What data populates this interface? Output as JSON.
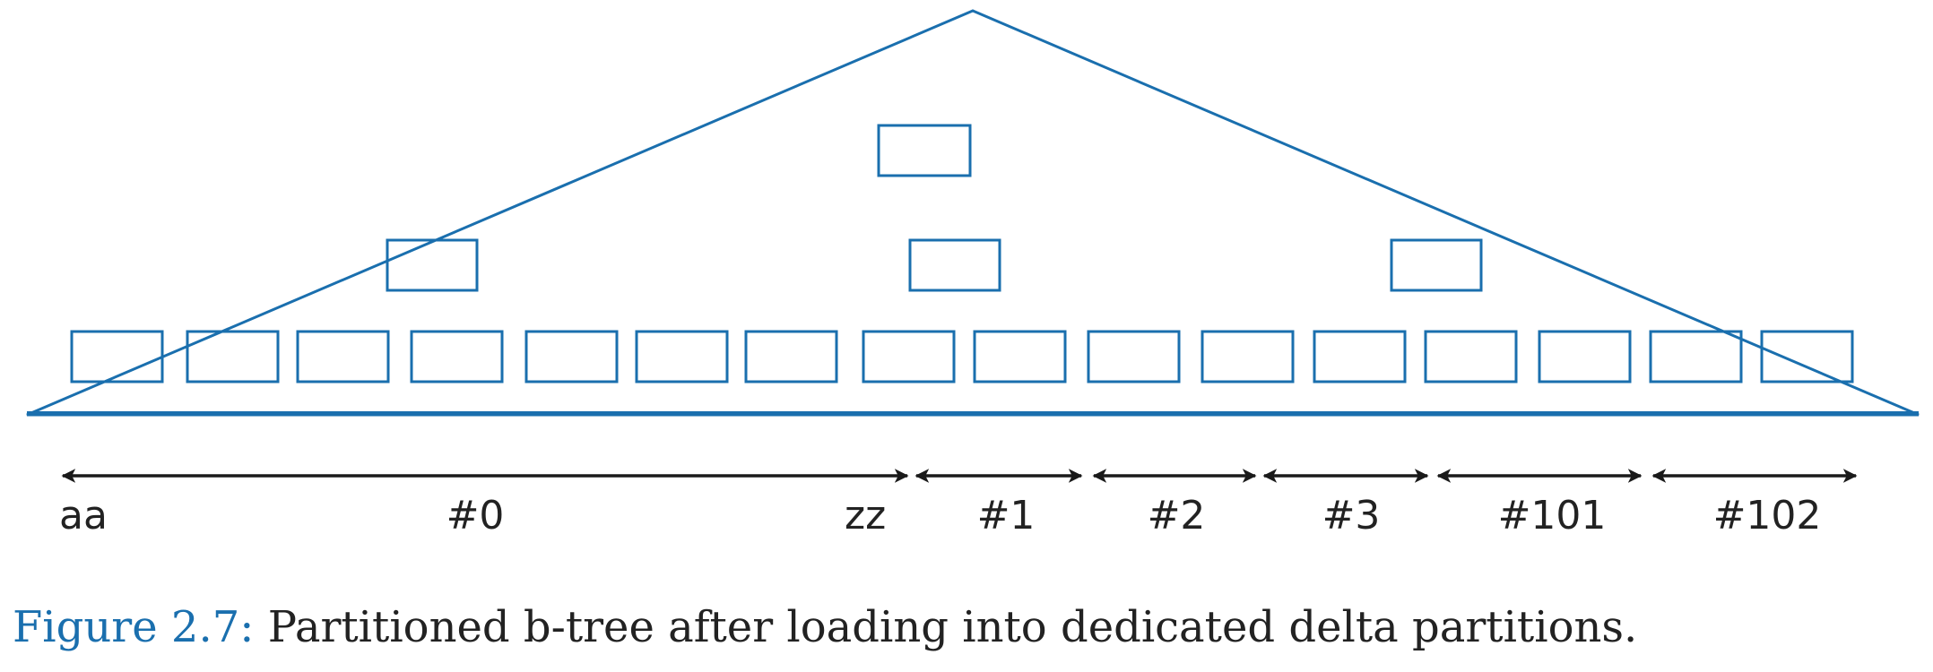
{
  "diagram": {
    "tree_color": "#1a6fae",
    "arrow_color": "#1a1a1a",
    "top_level_nodes": 1,
    "middle_level_nodes": 3,
    "leaf_nodes": 16,
    "range_start_label": "aa",
    "range_end_label": "zz",
    "partitions": [
      {
        "label": "#0"
      },
      {
        "label": "#1"
      },
      {
        "label": "#2"
      },
      {
        "label": "#3"
      },
      {
        "label": "#101"
      },
      {
        "label": "#102"
      }
    ]
  },
  "caption": {
    "figure_number": "Figure 2.7:",
    "text": "Partitioned b-tree after loading into dedicated delta partitions."
  }
}
